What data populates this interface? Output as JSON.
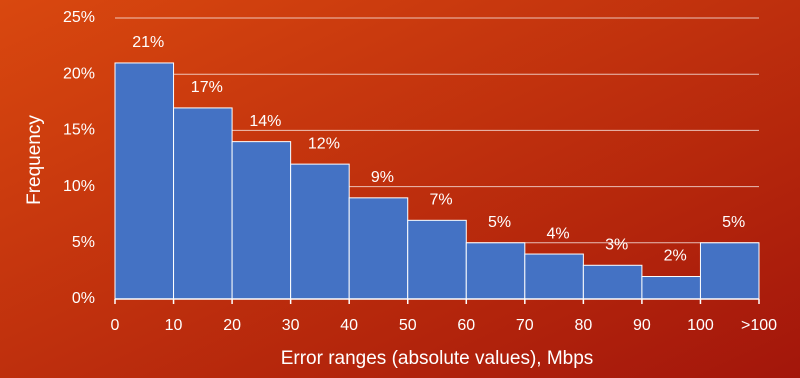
{
  "chart_data": {
    "type": "histogram",
    "x_label": "Error ranges (absolute values), Mbps",
    "y_label": "Frequency",
    "bins": [
      0,
      10,
      20,
      30,
      40,
      50,
      60,
      70,
      80,
      90,
      100,
      110
    ],
    "values": [
      21,
      17,
      14,
      12,
      9,
      7,
      5,
      4,
      3,
      2,
      5
    ],
    "value_labels": [
      "21%",
      "17%",
      "14%",
      "12%",
      "9%",
      "7%",
      "5%",
      "4%",
      "3%",
      "2%",
      "5%"
    ],
    "color": "#4472c4",
    "xlim": [
      0,
      110
    ],
    "xticks": [
      0,
      10,
      20,
      30,
      40,
      50,
      60,
      70,
      80,
      90,
      100,
      {
        "value": 110,
        "label": ">100"
      }
    ],
    "ylim": [
      0,
      25
    ],
    "yticks": [
      {
        "value": 0,
        "label": "0%"
      },
      {
        "value": 5,
        "label": "5%"
      },
      {
        "value": 10,
        "label": "10%"
      },
      {
        "value": 15,
        "label": "15%"
      },
      {
        "value": 20,
        "label": "20%"
      },
      {
        "value": 25,
        "label": "25%"
      }
    ],
    "grid": true
  }
}
